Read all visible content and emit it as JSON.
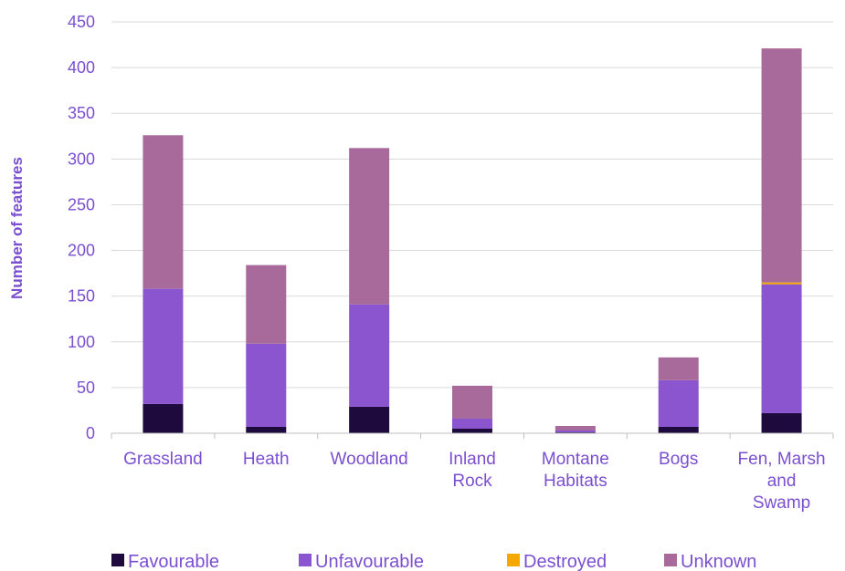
{
  "chart_data": {
    "type": "bar",
    "stacked": true,
    "title": "",
    "xlabel": "",
    "ylabel": "Number of features",
    "ylim": [
      0,
      450
    ],
    "yticks": [
      0,
      50,
      100,
      150,
      200,
      250,
      300,
      350,
      400,
      450
    ],
    "grid": true,
    "legend_position": "bottom",
    "categories": [
      [
        "Grassland"
      ],
      [
        "Heath"
      ],
      [
        "Woodland"
      ],
      [
        "Inland",
        "Rock"
      ],
      [
        "Montane",
        "Habitats"
      ],
      [
        "Bogs"
      ],
      [
        "Fen, Marsh",
        "and",
        "Swamp"
      ]
    ],
    "series": [
      {
        "name": "Favourable",
        "color": "#1f0a3d",
        "values": [
          32,
          7,
          29,
          5,
          1,
          7,
          22
        ]
      },
      {
        "name": "Unfavourable",
        "color": "#8b55d0",
        "values": [
          126,
          91,
          112,
          11,
          2,
          51,
          141
        ]
      },
      {
        "name": "Destroyed",
        "color": "#f5a800",
        "values": [
          0,
          0,
          0,
          0,
          0,
          0,
          2
        ]
      },
      {
        "name": "Unknown",
        "color": "#a86a9a",
        "values": [
          168,
          86,
          171,
          36,
          5,
          25,
          256
        ]
      }
    ]
  }
}
